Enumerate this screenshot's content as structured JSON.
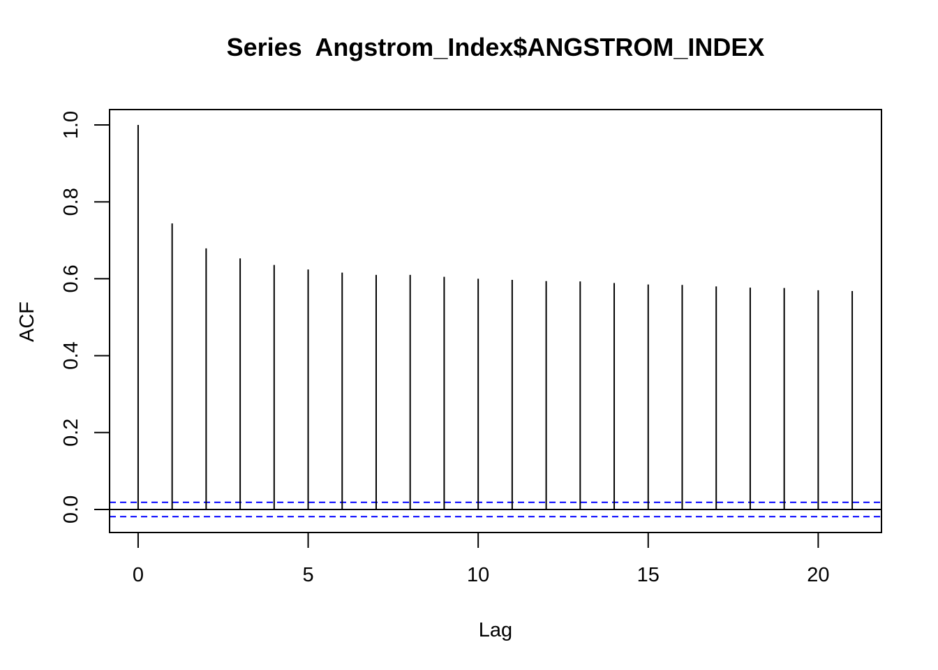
{
  "chart_data": {
    "type": "bar",
    "title": "Series  Angstrom_Index$ANGSTROM_INDEX",
    "xlabel": "Lag",
    "ylabel": "ACF",
    "x": [
      0,
      1,
      2,
      3,
      4,
      5,
      6,
      7,
      8,
      9,
      10,
      11,
      12,
      13,
      14,
      15,
      16,
      17,
      18,
      19,
      20,
      21
    ],
    "values": [
      1.0,
      0.744,
      0.679,
      0.653,
      0.636,
      0.624,
      0.616,
      0.61,
      0.61,
      0.605,
      0.6,
      0.597,
      0.594,
      0.593,
      0.589,
      0.585,
      0.584,
      0.58,
      0.577,
      0.576,
      0.57,
      0.568
    ],
    "xlim": [
      -0.84,
      21.86
    ],
    "ylim": [
      -0.06,
      1.04
    ],
    "xticks": [
      0,
      5,
      10,
      15,
      20
    ],
    "xtick_labels": [
      "0",
      "5",
      "10",
      "15",
      "20"
    ],
    "yticks": [
      0.0,
      0.2,
      0.4,
      0.6,
      0.8,
      1.0
    ],
    "ytick_labels": [
      "0.0",
      "0.2",
      "0.4",
      "0.6",
      "0.8",
      "1.0"
    ],
    "confidence_bound": 0.0186,
    "grid": false,
    "colors": {
      "bars": "#000000",
      "zero_line": "#000000",
      "confidence_lines": "#0000ff"
    }
  }
}
